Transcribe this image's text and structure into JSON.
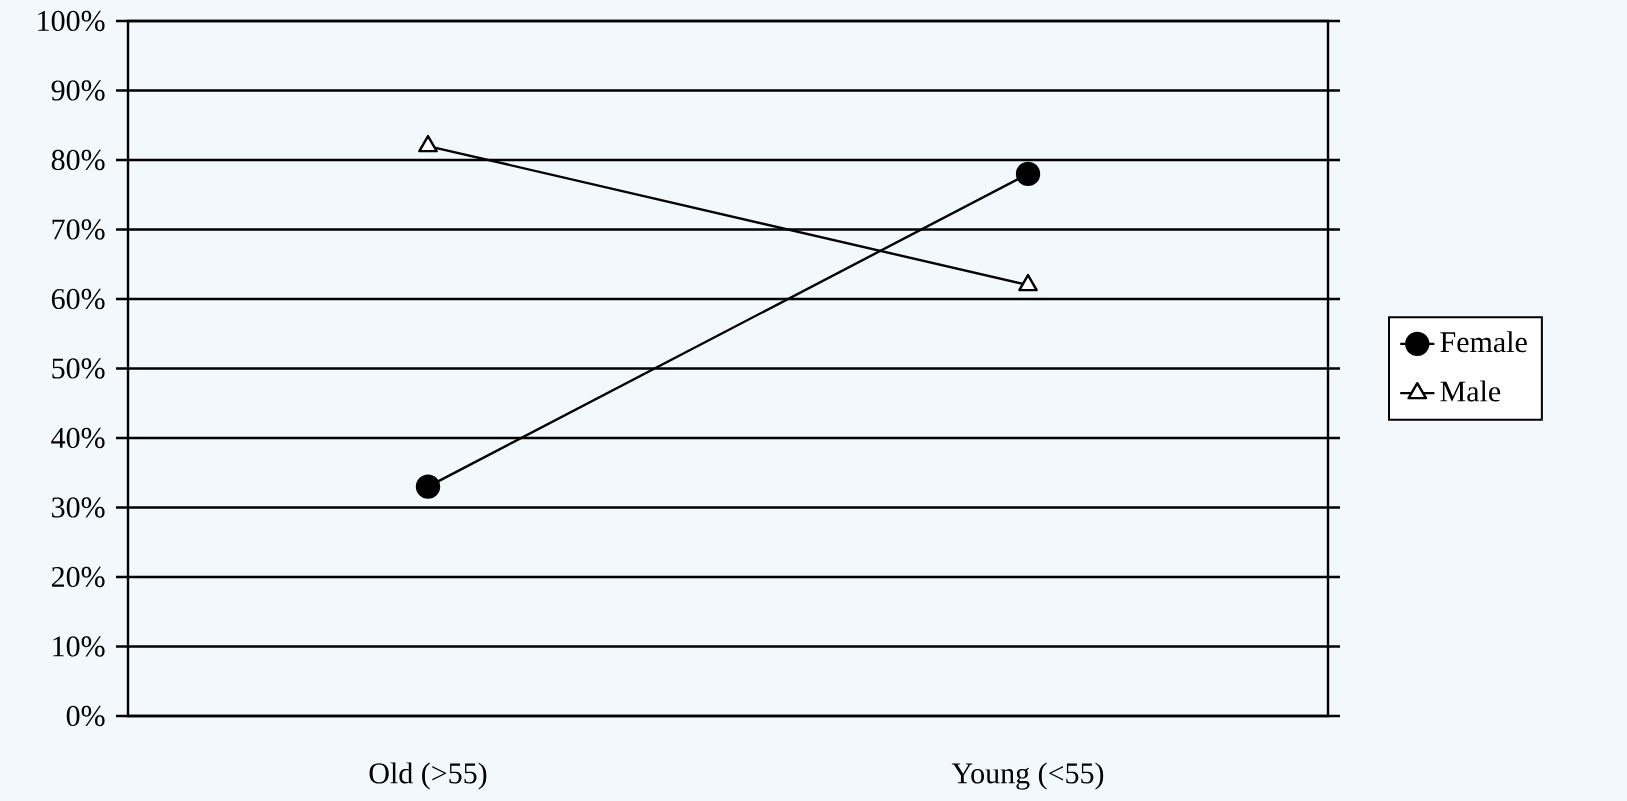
{
  "chart_data": {
    "type": "line",
    "categories": [
      "Old (>55)",
      "Young (<55)"
    ],
    "series": [
      {
        "name": "Female",
        "color": "#000000",
        "marker": "circle",
        "values": [
          33,
          78
        ]
      },
      {
        "name": "Male",
        "color": "#000000",
        "marker": "triangle",
        "values": [
          82,
          62
        ]
      }
    ],
    "ylim": [
      0,
      100
    ],
    "yticks": [
      {
        "value": 0,
        "label": "0%"
      },
      {
        "value": 10,
        "label": "10%"
      },
      {
        "value": 20,
        "label": "20%"
      },
      {
        "value": 30,
        "label": "30%"
      },
      {
        "value": 40,
        "label": "40%"
      },
      {
        "value": 50,
        "label": "50%"
      },
      {
        "value": 60,
        "label": "60%"
      },
      {
        "value": 70,
        "label": "70%"
      },
      {
        "value": 80,
        "label": "80%"
      },
      {
        "value": 90,
        "label": "90%"
      },
      {
        "value": 100,
        "label": "100%"
      }
    ],
    "grid": "y",
    "legend": "right",
    "line_style": "solid"
  }
}
